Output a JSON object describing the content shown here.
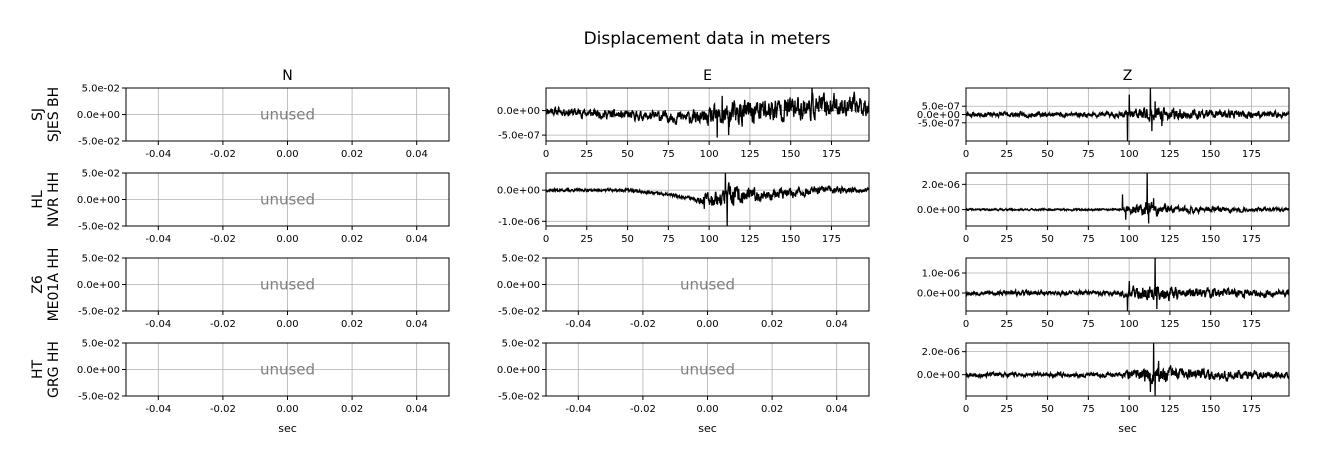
{
  "chart_data": {
    "type": "line",
    "title": "Displacement data in meters",
    "columns": [
      "N",
      "E",
      "Z"
    ],
    "rows": [
      {
        "label_top": "SJ",
        "label_bottom": "SJES BH"
      },
      {
        "label_top": "HL",
        "label_bottom": "NVR HH"
      },
      {
        "label_top": "Z6",
        "label_bottom": "ME01A HH"
      },
      {
        "label_top": "HT",
        "label_bottom": "GRG HH"
      }
    ],
    "xlabel": "sec",
    "placeholder_text": "unused",
    "line_color": "#000000",
    "grid": true,
    "panels": [
      {
        "row": 0,
        "col": 0,
        "unused": true,
        "xlim": [
          -0.05,
          0.05
        ],
        "ylim": [
          -0.05,
          0.05
        ],
        "xticks": [
          -0.04,
          -0.02,
          0.0,
          0.02,
          0.04
        ],
        "xtick_labels": [
          "-0.04",
          "-0.02",
          "0.00",
          "0.02",
          "0.04"
        ],
        "yticks": [
          0.05,
          0.0,
          -0.05
        ],
        "ytick_labels": [
          "5.0e-02",
          "0.0e+00",
          "-5.0e-02"
        ]
      },
      {
        "row": 0,
        "col": 1,
        "unused": false,
        "xlim": [
          0,
          198
        ],
        "ylim": [
          -6.2e-07,
          4.6e-07
        ],
        "xticks": [
          0,
          25,
          50,
          75,
          100,
          125,
          150,
          175
        ],
        "xtick_labels": [
          "0",
          "25",
          "50",
          "75",
          "100",
          "125",
          "150",
          "175"
        ],
        "yticks": [
          0.0,
          -5e-07
        ],
        "ytick_labels": [
          "0.0e+00",
          "-5.0e-07"
        ],
        "seed": 11,
        "baseline": [
          [
            0,
            0.0
          ],
          [
            50,
            -1e-07
          ],
          [
            80,
            -1.3e-07
          ],
          [
            100,
            -1.6e-07
          ],
          [
            125,
            -3e-08
          ],
          [
            150,
            5e-08
          ],
          [
            175,
            1e-07
          ],
          [
            198,
            1e-07
          ]
        ],
        "noise": [
          [
            0,
            7e-08
          ],
          [
            60,
            8e-08
          ],
          [
            95,
            1.2e-07
          ],
          [
            110,
            2.2e-07
          ],
          [
            160,
            2e-07
          ],
          [
            198,
            1.6e-07
          ]
        ],
        "spikes": [
          [
            105,
            -5.5e-07
          ],
          [
            108,
            3e-07
          ],
          [
            112,
            -5e-07
          ],
          [
            163,
            4.6e-07
          ]
        ]
      },
      {
        "row": 0,
        "col": 2,
        "unused": false,
        "xlim": [
          0,
          198
        ],
        "ylim": [
          -1.6e-06,
          1.6e-06
        ],
        "xticks": [
          0,
          25,
          50,
          75,
          100,
          125,
          150,
          175
        ],
        "xtick_labels": [
          "0",
          "25",
          "50",
          "75",
          "100",
          "125",
          "150",
          "175"
        ],
        "yticks": [
          5e-07,
          0.0,
          -5e-07
        ],
        "ytick_labels": [
          "5.0e-07",
          "0.0e+00",
          "-5.0e-07"
        ],
        "seed": 23,
        "baseline": [
          [
            0,
            0.0
          ],
          [
            198,
            0.0
          ]
        ],
        "noise": [
          [
            0,
            1.2e-07
          ],
          [
            90,
            1.2e-07
          ],
          [
            100,
            2.5e-07
          ],
          [
            112,
            3.5e-07
          ],
          [
            140,
            2.2e-07
          ],
          [
            198,
            1.4e-07
          ]
        ],
        "spikes": [
          [
            99,
            -1.6e-06
          ],
          [
            100,
            1.2e-06
          ],
          [
            113,
            1.6e-06
          ],
          [
            114,
            -1e-06
          ],
          [
            120,
            -7e-07
          ],
          [
            116,
            8e-07
          ]
        ]
      },
      {
        "row": 1,
        "col": 0,
        "unused": true,
        "xlim": [
          -0.05,
          0.05
        ],
        "ylim": [
          -0.05,
          0.05
        ],
        "xticks": [
          -0.04,
          -0.02,
          0.0,
          0.02,
          0.04
        ],
        "xtick_labels": [
          "-0.04",
          "-0.02",
          "0.00",
          "0.02",
          "0.04"
        ],
        "yticks": [
          0.05,
          0.0,
          -0.05
        ],
        "ytick_labels": [
          "5.0e-02",
          "0.0e+00",
          "-5.0e-02"
        ]
      },
      {
        "row": 1,
        "col": 1,
        "unused": false,
        "xlim": [
          0,
          198
        ],
        "ylim": [
          -1.15e-06,
          5.5e-07
        ],
        "xticks": [
          0,
          25,
          50,
          75,
          100,
          125,
          150,
          175
        ],
        "xtick_labels": [
          "0",
          "25",
          "50",
          "75",
          "100",
          "125",
          "150",
          "175"
        ],
        "yticks": [
          0.0,
          -1e-06
        ],
        "ytick_labels": [
          "0.0e+00",
          "-1.0e-06"
        ],
        "seed": 37,
        "baseline": [
          [
            0,
            0.0
          ],
          [
            50,
            0.0
          ],
          [
            75,
            -1.5e-07
          ],
          [
            95,
            -3e-07
          ],
          [
            120,
            -2e-07
          ],
          [
            150,
            -1e-07
          ],
          [
            175,
            2e-08
          ],
          [
            198,
            1e-08
          ]
        ],
        "noise": [
          [
            0,
            3.5e-08
          ],
          [
            90,
            4e-08
          ],
          [
            98,
            1.5e-07
          ],
          [
            112,
            3e-07
          ],
          [
            130,
            1.6e-07
          ],
          [
            198,
            6e-08
          ]
        ],
        "spikes": [
          [
            97,
            -6e-07
          ],
          [
            110,
            5.5e-07
          ],
          [
            111,
            -1.15e-06
          ],
          [
            114,
            -4e-07
          ]
        ]
      },
      {
        "row": 1,
        "col": 2,
        "unused": false,
        "xlim": [
          0,
          198
        ],
        "ylim": [
          -1.3e-06,
          2.9e-06
        ],
        "xticks": [
          0,
          25,
          50,
          75,
          100,
          125,
          150,
          175
        ],
        "xtick_labels": [
          "0",
          "25",
          "50",
          "75",
          "100",
          "125",
          "150",
          "175"
        ],
        "yticks": [
          2e-06,
          0.0
        ],
        "ytick_labels": [
          "2.0e-06",
          "0.0e+00"
        ],
        "seed": 41,
        "baseline": [
          [
            0,
            0.0
          ],
          [
            198,
            0.0
          ]
        ],
        "noise": [
          [
            0,
            6e-08
          ],
          [
            95,
            6e-08
          ],
          [
            100,
            2.5e-07
          ],
          [
            112,
            4.5e-07
          ],
          [
            130,
            2e-07
          ],
          [
            198,
            1e-07
          ]
        ],
        "spikes": [
          [
            96,
            1.2e-06
          ],
          [
            98,
            -8e-07
          ],
          [
            111,
            2.9e-06
          ],
          [
            112,
            -1.1e-06
          ],
          [
            115,
            9e-07
          ]
        ]
      },
      {
        "row": 2,
        "col": 0,
        "unused": true,
        "xlim": [
          -0.05,
          0.05
        ],
        "ylim": [
          -0.05,
          0.05
        ],
        "xticks": [
          -0.04,
          -0.02,
          0.0,
          0.02,
          0.04
        ],
        "xtick_labels": [
          "-0.04",
          "-0.02",
          "0.00",
          "0.02",
          "0.04"
        ],
        "yticks": [
          0.05,
          0.0,
          -0.05
        ],
        "ytick_labels": [
          "5.0e-02",
          "0.0e+00",
          "-5.0e-02"
        ]
      },
      {
        "row": 2,
        "col": 1,
        "unused": true,
        "xlim": [
          -0.05,
          0.05
        ],
        "ylim": [
          -0.05,
          0.05
        ],
        "xticks": [
          -0.04,
          -0.02,
          0.0,
          0.02,
          0.04
        ],
        "xtick_labels": [
          "-0.04",
          "-0.02",
          "0.00",
          "0.02",
          "0.04"
        ],
        "yticks": [
          0.05,
          0.0,
          -0.05
        ],
        "ytick_labels": [
          "5.0e-02",
          "0.0e+00",
          "-5.0e-02"
        ]
      },
      {
        "row": 2,
        "col": 2,
        "unused": false,
        "xlim": [
          0,
          198
        ],
        "ylim": [
          -9e-07,
          1.75e-06
        ],
        "xticks": [
          0,
          25,
          50,
          75,
          100,
          125,
          150,
          175
        ],
        "xtick_labels": [
          "0",
          "25",
          "50",
          "75",
          "100",
          "125",
          "150",
          "175"
        ],
        "yticks": [
          1e-06,
          0.0
        ],
        "ytick_labels": [
          "1.0e-06",
          "0.0e+00"
        ],
        "seed": 53,
        "baseline": [
          [
            0,
            0.0
          ],
          [
            198,
            0.0
          ]
        ],
        "noise": [
          [
            0,
            9e-08
          ],
          [
            95,
            1e-07
          ],
          [
            100,
            2.2e-07
          ],
          [
            115,
            3.2e-07
          ],
          [
            140,
            2.2e-07
          ],
          [
            198,
            1.5e-07
          ]
        ],
        "spikes": [
          [
            99,
            -9e-07
          ],
          [
            100,
            6e-07
          ],
          [
            116,
            1.75e-06
          ],
          [
            117,
            -8e-07
          ]
        ]
      },
      {
        "row": 3,
        "col": 0,
        "unused": true,
        "xlim": [
          -0.05,
          0.05
        ],
        "ylim": [
          -0.05,
          0.05
        ],
        "xticks": [
          -0.04,
          -0.02,
          0.0,
          0.02,
          0.04
        ],
        "xtick_labels": [
          "-0.04",
          "-0.02",
          "0.00",
          "0.02",
          "0.04"
        ],
        "yticks": [
          0.05,
          0.0,
          -0.05
        ],
        "ytick_labels": [
          "5.0e-02",
          "0.0e+00",
          "-5.0e-02"
        ]
      },
      {
        "row": 3,
        "col": 1,
        "unused": true,
        "xlim": [
          -0.05,
          0.05
        ],
        "ylim": [
          -0.05,
          0.05
        ],
        "xticks": [
          -0.04,
          -0.02,
          0.0,
          0.02,
          0.04
        ],
        "xtick_labels": [
          "-0.04",
          "-0.02",
          "0.00",
          "0.02",
          "0.04"
        ],
        "yticks": [
          0.05,
          0.0,
          -0.05
        ],
        "ytick_labels": [
          "5.0e-02",
          "0.0e+00",
          "-5.0e-02"
        ]
      },
      {
        "row": 3,
        "col": 2,
        "unused": false,
        "xlim": [
          0,
          198
        ],
        "ylim": [
          -1.85e-06,
          2.75e-06
        ],
        "xticks": [
          0,
          25,
          50,
          75,
          100,
          125,
          150,
          175
        ],
        "xtick_labels": [
          "0",
          "25",
          "50",
          "75",
          "100",
          "125",
          "150",
          "175"
        ],
        "yticks": [
          2e-06,
          0.0
        ],
        "ytick_labels": [
          "2.0e-06",
          "0.0e+00"
        ],
        "seed": 67,
        "baseline": [
          [
            0,
            0.0
          ],
          [
            198,
            0.0
          ]
        ],
        "noise": [
          [
            0,
            1.5e-07
          ],
          [
            95,
            1.6e-07
          ],
          [
            100,
            3.5e-07
          ],
          [
            115,
            6e-07
          ],
          [
            140,
            3.5e-07
          ],
          [
            198,
            2.5e-07
          ]
        ],
        "spikes": [
          [
            113,
            -1.5e-06
          ],
          [
            115,
            2.75e-06
          ],
          [
            116,
            -1.85e-06
          ],
          [
            118,
            1.2e-06
          ]
        ]
      }
    ]
  }
}
